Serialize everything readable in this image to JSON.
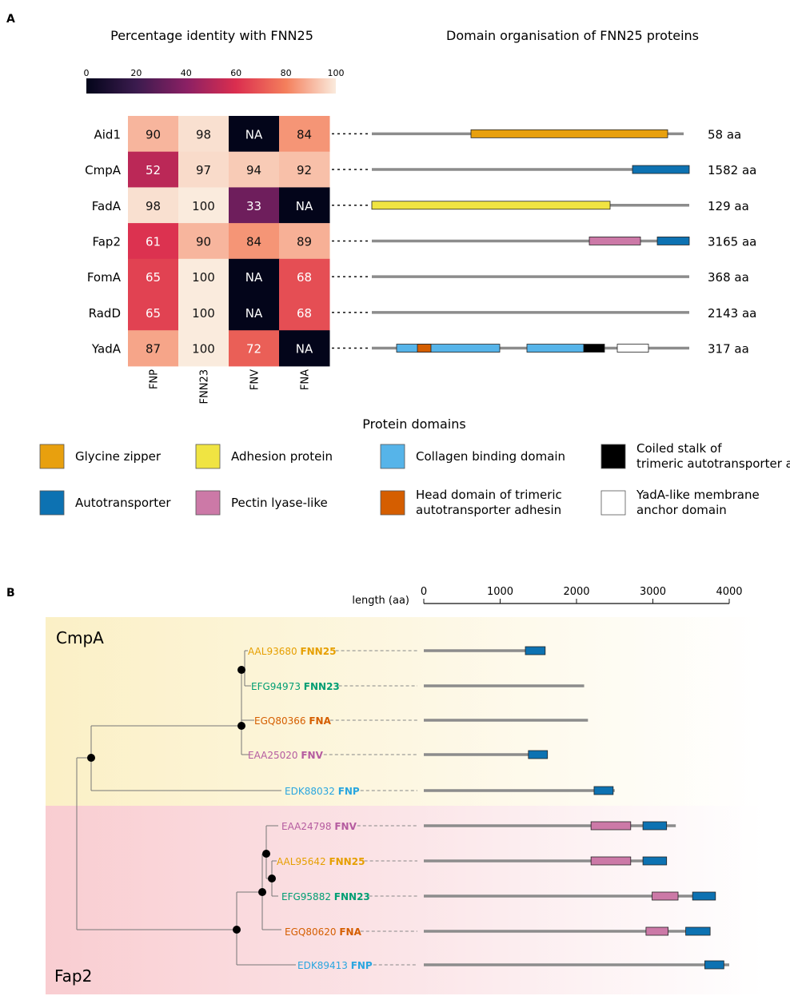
{
  "panel_a": {
    "label": "A",
    "heatmap_title": "Percentage identity with FNN25",
    "domain_title": "Domain organisation of FNN25 proteins",
    "colorbar_ticks": [
      "0",
      "20",
      "40",
      "60",
      "80",
      "100"
    ],
    "columns": [
      "FNP",
      "FNN23",
      "FNV",
      "FNA"
    ],
    "rows": [
      {
        "name": "Aid1",
        "cells": [
          {
            "t": "90",
            "v": 90
          },
          {
            "t": "98",
            "v": 98
          },
          {
            "t": "NA",
            "v": 0
          },
          {
            "t": "84",
            "v": 84
          }
        ],
        "length": "58 aa"
      },
      {
        "name": "CmpA",
        "cells": [
          {
            "t": "52",
            "v": 52
          },
          {
            "t": "97",
            "v": 97
          },
          {
            "t": "94",
            "v": 94
          },
          {
            "t": "92",
            "v": 92
          }
        ],
        "length": "1582 aa"
      },
      {
        "name": "FadA",
        "cells": [
          {
            "t": "98",
            "v": 98
          },
          {
            "t": "100",
            "v": 100
          },
          {
            "t": "33",
            "v": 33
          },
          {
            "t": "NA",
            "v": 0
          }
        ],
        "length": "129 aa"
      },
      {
        "name": "Fap2",
        "cells": [
          {
            "t": "61",
            "v": 61
          },
          {
            "t": "90",
            "v": 90
          },
          {
            "t": "84",
            "v": 84
          },
          {
            "t": "89",
            "v": 89
          }
        ],
        "length": "3165 aa"
      },
      {
        "name": "FomA",
        "cells": [
          {
            "t": "65",
            "v": 65
          },
          {
            "t": "100",
            "v": 100
          },
          {
            "t": "NA",
            "v": 0
          },
          {
            "t": "68",
            "v": 68
          }
        ],
        "length": "368 aa"
      },
      {
        "name": "RadD",
        "cells": [
          {
            "t": "65",
            "v": 65
          },
          {
            "t": "100",
            "v": 100
          },
          {
            "t": "NA",
            "v": 0
          },
          {
            "t": "68",
            "v": 68
          }
        ],
        "length": "2143 aa"
      },
      {
        "name": "YadA",
        "cells": [
          {
            "t": "87",
            "v": 87
          },
          {
            "t": "100",
            "v": 100
          },
          {
            "t": "72",
            "v": 72
          },
          {
            "t": "NA",
            "v": 0
          }
        ],
        "length": "317 aa"
      }
    ]
  },
  "legend": {
    "title": "Protein domains",
    "items": [
      {
        "label": "Glycine zipper",
        "color": "#e8a00e"
      },
      {
        "label": "Adhesion protein",
        "color": "#f0e442"
      },
      {
        "label": "Collagen binding domain",
        "color": "#56b4e9"
      },
      {
        "label": "Coiled stalk of trimeric autotransporter adhesin",
        "color": "#000000"
      },
      {
        "label": "Autotransporter",
        "color": "#0d72b2"
      },
      {
        "label": "Pectin lyase-like",
        "color": "#cc79a7"
      },
      {
        "label": "Head domain of trimeric autotransporter adhesin",
        "color": "#d55e00"
      },
      {
        "label": "YadA-like membrane anchor domain",
        "color": "#ffffff"
      }
    ]
  },
  "panel_b": {
    "label": "B",
    "axis_label": "length (aa)",
    "axis_ticks": [
      "0",
      "1000",
      "2000",
      "3000",
      "4000"
    ],
    "axis_max": 4000,
    "group_cmpa": "CmpA",
    "group_fap2": "Fap2",
    "leaves": [
      {
        "acc": "AAL93680",
        "strain": "FNN25",
        "color": "#e69f00",
        "length": 1582
      },
      {
        "acc": "EFG94973",
        "strain": "FNN23",
        "color": "#009e73",
        "length": 2100
      },
      {
        "acc": "EGQ80366",
        "strain": "FNA",
        "color": "#d55e00",
        "length": 2150
      },
      {
        "acc": "EAA25020",
        "strain": "FNV",
        "color": "#b55ca0",
        "length": 1620
      },
      {
        "acc": "EDK88032",
        "strain": "FNP",
        "color": "#2aa6df",
        "length": 2500
      },
      {
        "acc": "EAA24798",
        "strain": "FNV",
        "color": "#b55ca0",
        "length": 3300
      },
      {
        "acc": "AAL95642",
        "strain": "FNN25",
        "color": "#e69f00",
        "length": 3165
      },
      {
        "acc": "EFG95882",
        "strain": "FNN23",
        "color": "#009e73",
        "length": 3800
      },
      {
        "acc": "EGQ80620",
        "strain": "FNA",
        "color": "#d55e00",
        "length": 3720
      },
      {
        "acc": "EDK89413",
        "strain": "FNP",
        "color": "#2aa6df",
        "length": 4000
      }
    ]
  }
}
